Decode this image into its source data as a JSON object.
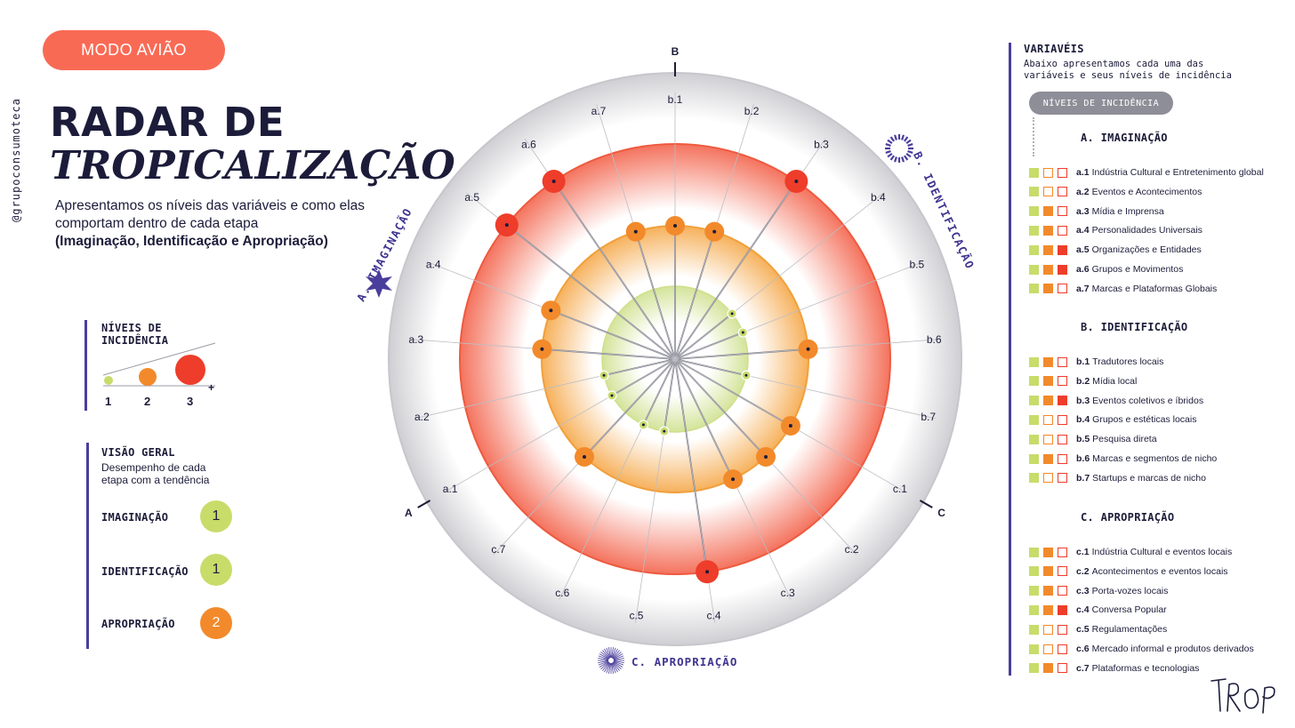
{
  "badge": "MODO AVIÃO",
  "handle": "@grupoconsumoteca",
  "title_line1": "RADAR DE",
  "title_line2": "TROPICALIZAÇÃO",
  "intro_text": "Apresentamos os níveis das variáveis e como elas comportam dentro de cada etapa",
  "intro_bold": "(Imaginação, Identificação e Apropriação)",
  "levels_box": {
    "title": "NÍVEIS DE INCIDÊNCIA",
    "labels": [
      "1",
      "2",
      "3"
    ],
    "plus": "+"
  },
  "overview": {
    "title": "VISÃO GERAL",
    "subtitle_line1": "Desempenho de cada",
    "subtitle_line2": "etapa com a tendência",
    "items": [
      {
        "label": "IMAGINAÇÃO",
        "value": "1",
        "color": "#c8dc6a"
      },
      {
        "label": "IDENTIFICAÇÃO",
        "value": "1",
        "color": "#c8dc6a"
      },
      {
        "label": "APROPRIAÇÃO",
        "value": "2",
        "color": "#f28a2b"
      }
    ]
  },
  "colors": {
    "level1": "#c8dc6a",
    "level2": "#f28a2b",
    "level3": "#ee3d2a",
    "accent": "#4a3e9c",
    "badge": "#f96a55"
  },
  "chart_data": {
    "type": "radar",
    "axis_markers": [
      "A",
      "B",
      "C"
    ],
    "sections": [
      "A. IMAGINAÇÃO",
      "B. IDENTIFICAÇÃO",
      "C. APROPRIAÇÃO"
    ],
    "levels": [
      1,
      2,
      3
    ],
    "categories": [
      "b.1",
      "b.2",
      "b.3",
      "b.4",
      "b.5",
      "b.6",
      "b.7",
      "c.1",
      "c.2",
      "c.3",
      "c.4",
      "c.5",
      "c.6",
      "c.7",
      "a.1",
      "a.2",
      "a.3",
      "a.4",
      "a.5",
      "a.6",
      "a.7"
    ],
    "values": [
      2,
      2,
      3,
      1,
      1,
      2,
      1,
      2,
      2,
      2,
      3,
      1,
      1,
      2,
      1,
      1,
      2,
      2,
      3,
      3,
      2
    ]
  },
  "variables": {
    "title": "VARIAVÉIS",
    "subtitle_line1": "Abaixo apresentamos cada uma das",
    "subtitle_line2": "variáveis e seus níveis de incidência",
    "legend_pill": "NÍVEIS DE INCIDÊNCIA",
    "sections": [
      {
        "title": "A. IMAGINAÇÃO",
        "items": [
          {
            "code": "a.1",
            "label": "Indústria Cultural e Entretenimento global",
            "level": 1
          },
          {
            "code": "a.2",
            "label": "Eventos e Acontecimentos",
            "level": 1
          },
          {
            "code": "a.3",
            "label": "Mídia e Imprensa",
            "level": 2
          },
          {
            "code": "a.4",
            "label": "Personalidades Universais",
            "level": 2
          },
          {
            "code": "a.5",
            "label": "Organizações e Entidades",
            "level": 3
          },
          {
            "code": "a.6",
            "label": "Grupos e Movimentos",
            "level": 3
          },
          {
            "code": "a.7",
            "label": "Marcas e Plataformas Globais",
            "level": 2
          }
        ]
      },
      {
        "title": "B. IDENTIFICAÇÃO",
        "items": [
          {
            "code": "b.1",
            "label": "Tradutores locais",
            "level": 2
          },
          {
            "code": "b.2",
            "label": "Mídia local",
            "level": 2
          },
          {
            "code": "b.3",
            "label": "Eventos coletivos e íbridos",
            "level": 3
          },
          {
            "code": "b.4",
            "label": "Grupos e estéticas locais",
            "level": 1
          },
          {
            "code": "b.5",
            "label": "Pesquisa direta",
            "level": 1
          },
          {
            "code": "b.6",
            "label": "Marcas e segmentos de nicho",
            "level": 2
          },
          {
            "code": "b.7",
            "label": "Startups e marcas de nicho",
            "level": 1
          }
        ]
      },
      {
        "title": "C. APROPRIAÇÃO",
        "items": [
          {
            "code": "c.1",
            "label": "Indústria Cultural e eventos locais",
            "level": 2
          },
          {
            "code": "c.2",
            "label": "Acontecimentos e eventos locais",
            "level": 2
          },
          {
            "code": "c.3",
            "label": "Porta-vozes locais",
            "level": 2
          },
          {
            "code": "c.4",
            "label": "Conversa Popular",
            "level": 3
          },
          {
            "code": "c.5",
            "label": "Regulamentações",
            "level": 1
          },
          {
            "code": "c.6",
            "label": "Mercado informal e produtos derivados",
            "level": 1
          },
          {
            "code": "c.7",
            "label": "Plataformas e tecnologias",
            "level": 2
          }
        ]
      }
    ]
  },
  "logo_text": "TROP"
}
